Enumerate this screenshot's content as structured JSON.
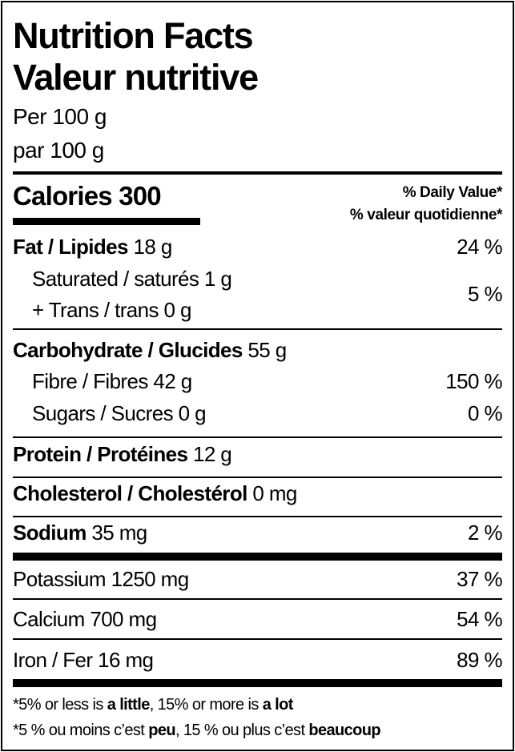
{
  "header": {
    "title_en": "Nutrition Facts",
    "title_fr": "Valeur nutritive",
    "serving_en": "Per 100 g",
    "serving_fr": "par 100 g"
  },
  "calories": {
    "label": "Calories",
    "value": "300"
  },
  "daily_value": {
    "en": "% Daily Value*",
    "fr": "% valeur quotidienne*"
  },
  "rows": {
    "fat": {
      "label": "Fat / Lipides",
      "amount": "18 g",
      "dv": "24 %"
    },
    "saturated": {
      "label": "Saturated / saturés 1 g"
    },
    "trans": {
      "label": "+ Trans / trans 0 g"
    },
    "sat_trans_dv": "5 %",
    "carb": {
      "label": "Carbohydrate / Glucides",
      "amount": "55 g"
    },
    "fibre": {
      "label": "Fibre / Fibres 42 g",
      "dv": "150 %"
    },
    "sugars": {
      "label": "Sugars / Sucres 0 g",
      "dv": "0 %"
    },
    "protein": {
      "label": "Protein / Protéines",
      "amount": "12 g"
    },
    "cholesterol": {
      "label": "Cholesterol / Cholestérol",
      "amount": "0 mg"
    },
    "sodium": {
      "label": "Sodium",
      "amount": "35 mg",
      "dv": "2 %"
    },
    "potassium": {
      "label": "Potassium 1250 mg",
      "dv": "37 %"
    },
    "calcium": {
      "label": "Calcium 700 mg",
      "dv": "54 %"
    },
    "iron": {
      "label": "Iron / Fer 16 mg",
      "dv": "89 %"
    }
  },
  "footnote": {
    "en": {
      "a": "*5% or less is ",
      "b": "a little",
      "c": ", 15% or more is ",
      "d": "a lot"
    },
    "fr": {
      "a": "*5 % ou moins c’est ",
      "b": "peu",
      "c": ", 15 % ou plus c’est ",
      "d": "beaucoup"
    }
  }
}
